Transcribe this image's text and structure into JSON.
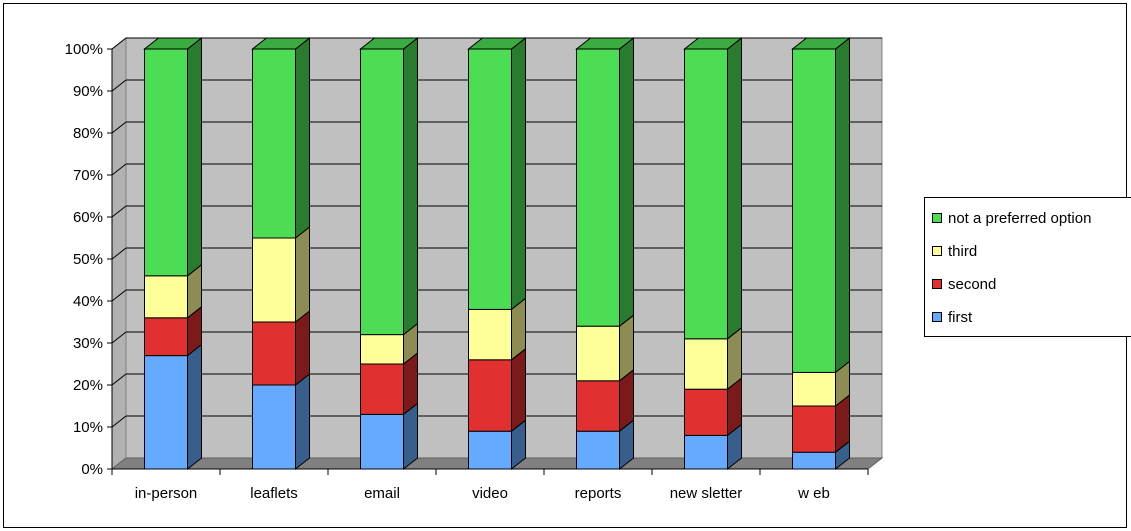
{
  "colors": {
    "first": "#66aaff",
    "second": "#e03030",
    "third": "#ffff99",
    "not_preferred": "#4ddd55",
    "floor": "#808080",
    "wall": "#c0c0c0",
    "grid": "#000000"
  },
  "chart_data": {
    "type": "bar",
    "stacked": true,
    "normalized_percent": true,
    "style": "3d-stacked-column",
    "categories": [
      "in-person",
      "leaflets",
      "email",
      "video",
      "reports",
      "new sletter",
      "w eb"
    ],
    "series": [
      {
        "name": "first",
        "values": [
          27,
          20,
          13,
          9,
          9,
          8,
          4
        ]
      },
      {
        "name": "second",
        "values": [
          9,
          15,
          12,
          17,
          12,
          11,
          11
        ]
      },
      {
        "name": "third",
        "values": [
          10,
          20,
          7,
          12,
          13,
          12,
          8
        ]
      },
      {
        "name": "not a preferred option",
        "values": [
          54,
          45,
          68,
          62,
          66,
          69,
          77
        ]
      }
    ],
    "y_ticks": [
      "0%",
      "10%",
      "20%",
      "30%",
      "40%",
      "50%",
      "60%",
      "70%",
      "80%",
      "90%",
      "100%"
    ],
    "ylim": [
      0,
      100
    ],
    "grid": true,
    "legend_position": "right",
    "legend_order": [
      "not a preferred option",
      "third",
      "second",
      "first"
    ],
    "title": "",
    "xlabel": "",
    "ylabel": ""
  }
}
